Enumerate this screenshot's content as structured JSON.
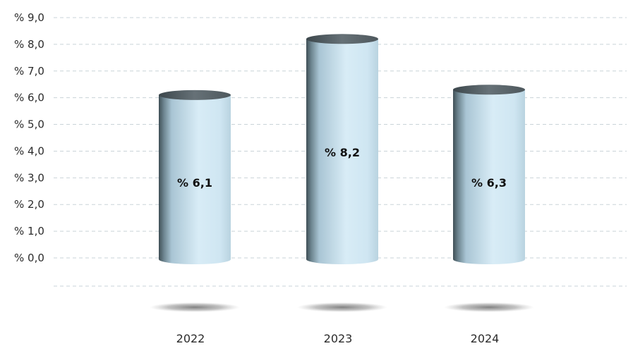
{
  "chart_data": {
    "type": "bar",
    "title": "",
    "xlabel": "",
    "ylabel": "",
    "categories": [
      "2022",
      "2023",
      "2024"
    ],
    "values": [
      6.1,
      8.2,
      6.3
    ],
    "data_labels": [
      "% 6,1",
      "% 8,2",
      "% 6,3"
    ],
    "y_ticks": [
      "% 0,0",
      "% 1,0",
      "% 2,0",
      "% 3,0",
      "% 4,0",
      "% 5,0",
      "% 6,0",
      "% 7,0",
      "% 8,0",
      "% 9,0"
    ],
    "ylim": [
      0,
      9
    ],
    "grid": true,
    "legend": "none",
    "style": "3d-cylinder",
    "colors": {
      "cylinder_light": "#d8ecf6",
      "cylinder_mid": "#a9c5d4",
      "cylinder_dark": "#3f4f56",
      "top_cap": "#5a6469",
      "grid": "#c9d3d8",
      "shadow": "#8e8e8e"
    }
  }
}
